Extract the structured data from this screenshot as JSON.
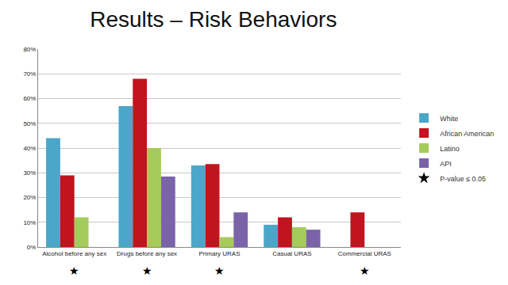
{
  "chart_data": {
    "type": "bar",
    "title": "Results – Risk Behaviors",
    "categories": [
      "Alcohol before any sex",
      "Drugs before any sex",
      "Primary URAS",
      "Casual URAS",
      "Commercial URAS"
    ],
    "series": [
      {
        "name": "White",
        "color": "#4ba7c9",
        "values": [
          44,
          57,
          33,
          9,
          0
        ]
      },
      {
        "name": "African American",
        "color": "#c0151f",
        "values": [
          29,
          68,
          33.5,
          12,
          14
        ]
      },
      {
        "name": "Latino",
        "color": "#a5cb5a",
        "values": [
          12,
          40,
          4,
          8,
          0
        ]
      },
      {
        "name": "API",
        "color": "#7b63a9",
        "values": [
          0,
          28.5,
          14,
          7,
          0
        ]
      }
    ],
    "significance": {
      "name": "P-value ≤ 0.05",
      "symbol": "★",
      "marker": "star",
      "color": "#000000",
      "categories": [
        "Alcohol before any sex",
        "Drugs before any sex",
        "Primary URAS",
        "Commercial URAS"
      ]
    },
    "ylim": [
      0,
      80
    ],
    "yticks": [
      {
        "value": 0,
        "label": "0%"
      },
      {
        "value": 10,
        "label": "10%"
      },
      {
        "value": 20,
        "label": "20%"
      },
      {
        "value": 30,
        "label": "30%"
      },
      {
        "value": 40,
        "label": "40%"
      },
      {
        "value": 50,
        "label": "50%"
      },
      {
        "value": 60,
        "label": "60%"
      },
      {
        "value": 70,
        "label": "70%"
      },
      {
        "value": 80,
        "label": "80%"
      }
    ],
    "grid": true,
    "legend": "right"
  }
}
